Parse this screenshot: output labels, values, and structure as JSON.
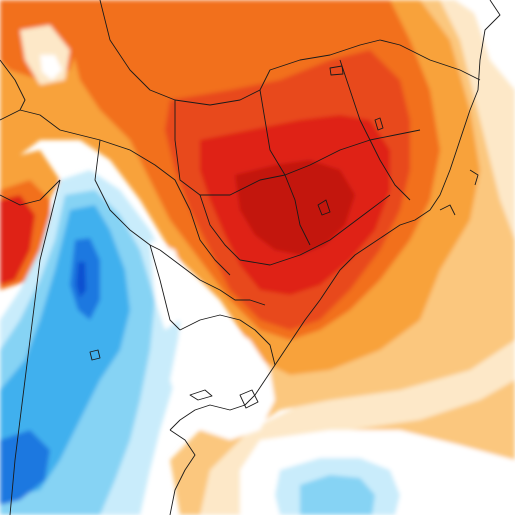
{
  "map": {
    "type": "temperature-anomaly-map",
    "region": "South America",
    "legend": null,
    "title": "",
    "palette": {
      "ocean": "#ffffff",
      "land_neutral": "#ffffff",
      "pale_peach": "#fde8c8",
      "light_orange": "#fbc77e",
      "orange": "#f8a23a",
      "deep_orange": "#f2701a",
      "red_orange": "#e8481a",
      "red": "#df2418",
      "dark_red": "#c3120f",
      "pale_blue": "#c9ecfb",
      "light_blue": "#86d3f4",
      "sky_blue": "#3fb0ee",
      "blue": "#1a78e0",
      "deep_blue": "#0a4fd0",
      "border": "#1a1a1a"
    }
  }
}
